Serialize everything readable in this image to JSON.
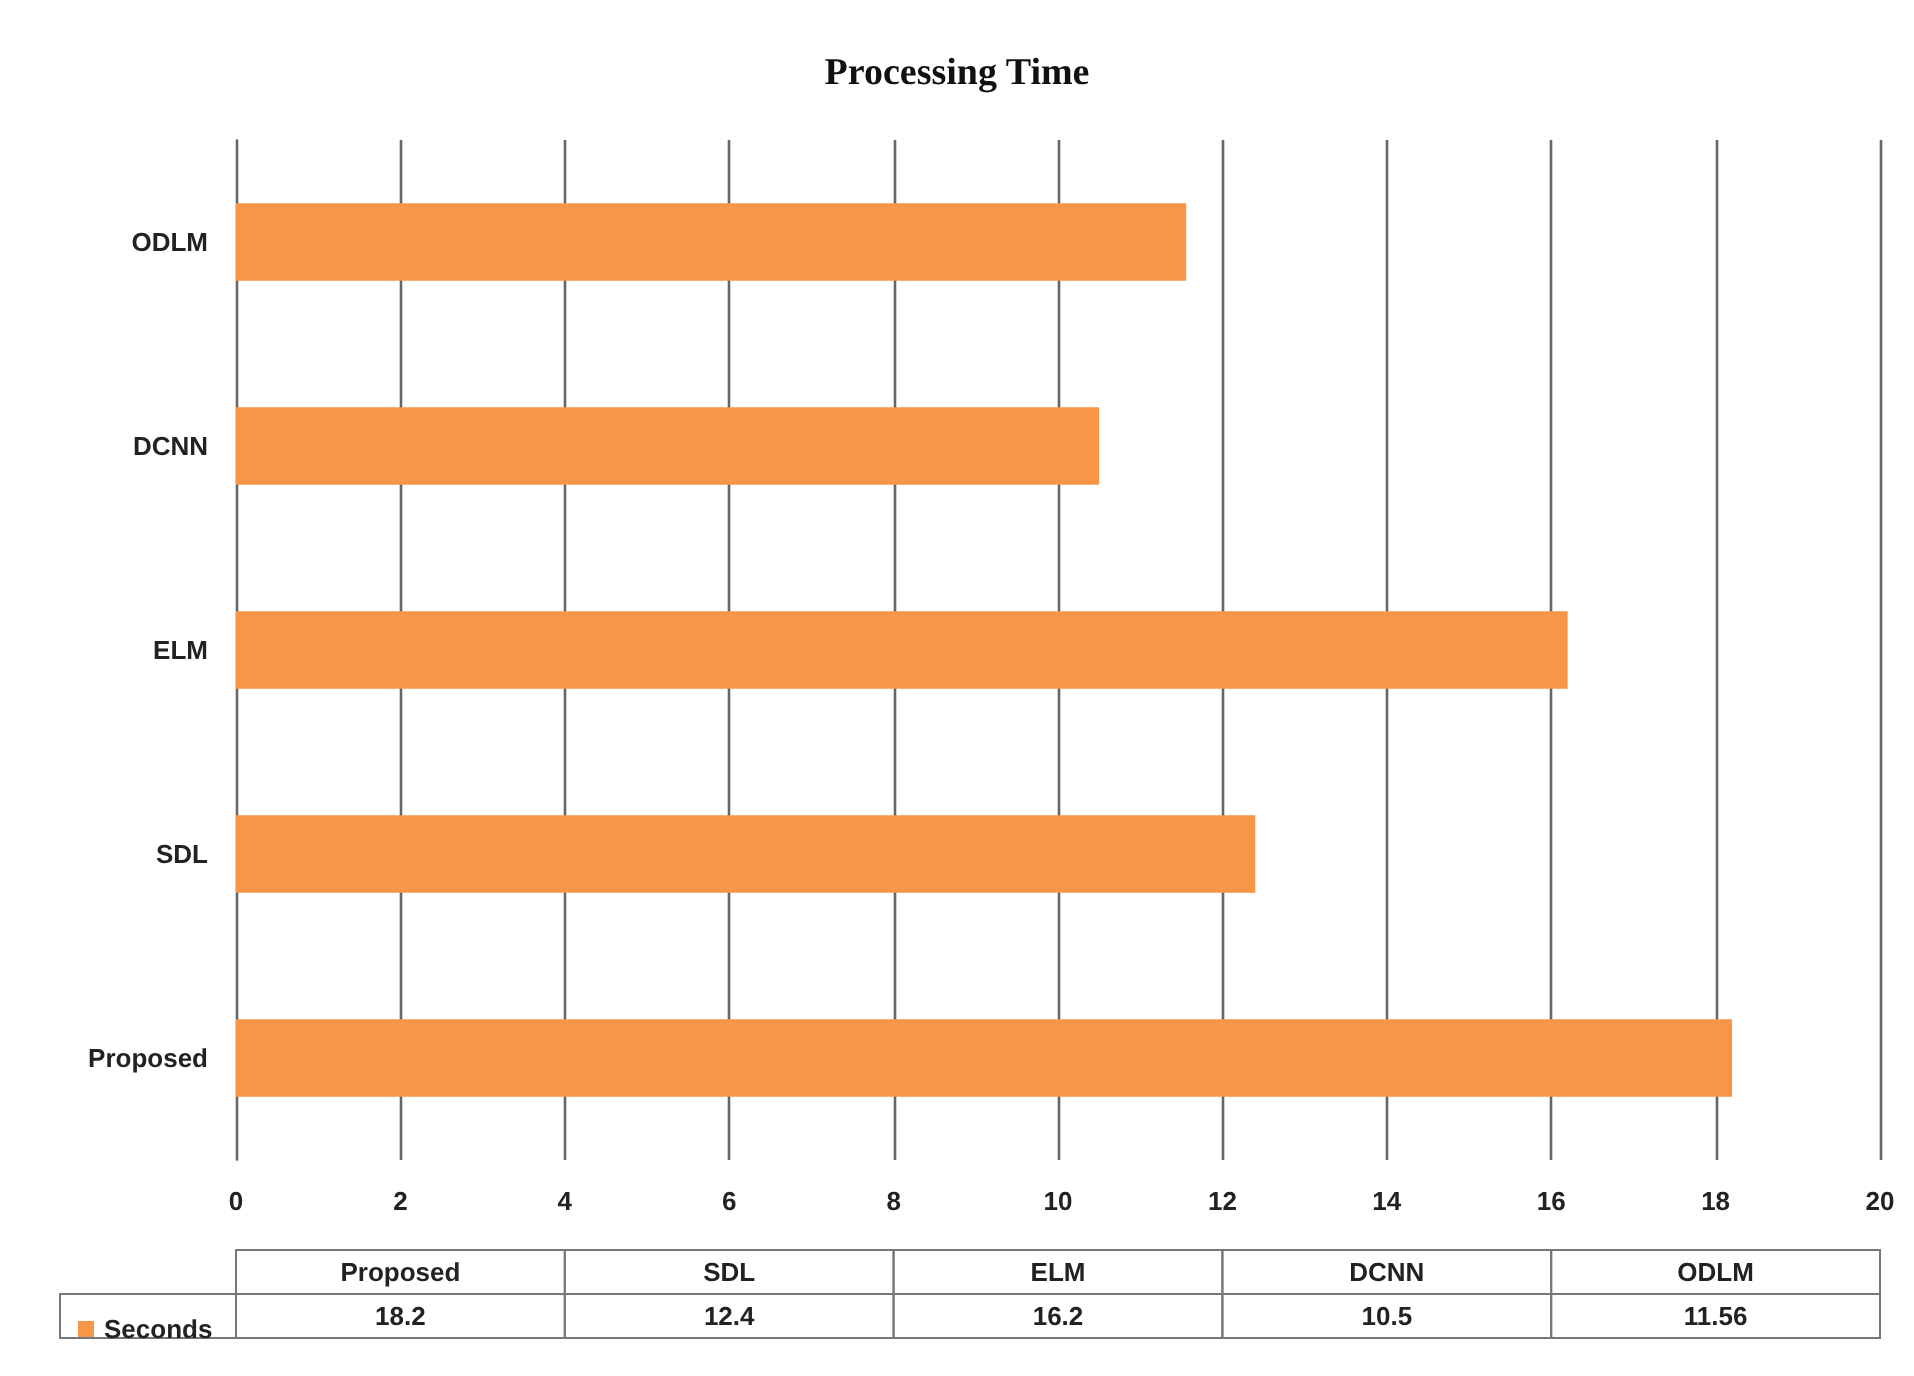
{
  "chart_data": {
    "type": "bar",
    "title": "Processing Time",
    "orientation": "horizontal",
    "categories": [
      "ODLM",
      "DCNN",
      "ELM",
      "SDL",
      "Proposed"
    ],
    "series": [
      {
        "name": "Seconds",
        "color": "#f79646",
        "values": [
          11.56,
          10.5,
          16.2,
          12.4,
          18.2
        ]
      }
    ],
    "xlim": [
      0,
      20
    ],
    "xticks": [
      0,
      2,
      4,
      6,
      8,
      10,
      12,
      14,
      16,
      18,
      20
    ],
    "grid": "x",
    "legend": "bottom left",
    "annotations": [
      "18.2",
      "12.4",
      "16.2",
      "10.5",
      "11.56"
    ]
  }
}
